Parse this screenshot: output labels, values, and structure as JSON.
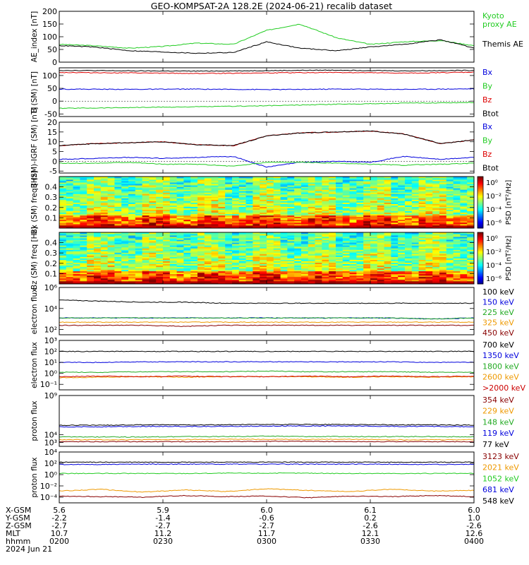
{
  "title": "GEO-KOMPSAT-2A 128.2E (2024-06-21) recalib dataset",
  "chart_data": [
    {
      "id": "ae",
      "type": "line",
      "ylabel": "AE_index [nT]",
      "ylim": [
        0,
        200
      ],
      "yticks": [
        0,
        50,
        100,
        150,
        200
      ],
      "yticklabels": [
        "0",
        "50",
        "100",
        "150",
        "200"
      ],
      "x": [
        0,
        0.08,
        0.17,
        0.25,
        0.33,
        0.42,
        0.5,
        0.58,
        0.67,
        0.75,
        0.83,
        0.92,
        1
      ],
      "legend": [
        {
          "text": "Kyoto",
          "color": "#22cc22"
        },
        {
          "text": "proxy AE",
          "color": "#22cc22"
        },
        {
          "text": "Themis AE",
          "color": "#000000"
        }
      ],
      "series": [
        {
          "name": "Kyoto proxy AE",
          "color": "#22cc22",
          "values": [
            70,
            65,
            55,
            62,
            75,
            70,
            125,
            150,
            95,
            70,
            80,
            85,
            65
          ]
        },
        {
          "name": "Themis AE",
          "color": "#000000",
          "values": [
            65,
            60,
            45,
            40,
            35,
            38,
            80,
            55,
            45,
            60,
            70,
            88,
            55
          ]
        }
      ]
    },
    {
      "id": "bsm",
      "type": "line",
      "ylabel": "B (SM) [nT]",
      "ylim": [
        -60,
        130
      ],
      "yticks": [
        -50,
        0,
        50,
        100
      ],
      "yticklabels": [
        "-50",
        "0",
        "50",
        "100"
      ],
      "x": [
        0,
        0.17,
        0.33,
        0.5,
        0.67,
        0.83,
        1
      ],
      "legend": [
        {
          "text": "Bx",
          "color": "#0000dd"
        },
        {
          "text": "By",
          "color": "#22cc22"
        },
        {
          "text": "Bz",
          "color": "#dd0000"
        },
        {
          "text": "Btot",
          "color": "#000000"
        }
      ],
      "series": [
        {
          "name": "Btot",
          "color": "#000000",
          "values": [
            120,
            118,
            117,
            119,
            121,
            118,
            120
          ]
        },
        {
          "name": "Bz",
          "color": "#dd0000",
          "values": [
            112,
            110,
            108,
            110,
            112,
            109,
            113
          ]
        },
        {
          "name": "Bx",
          "color": "#0000dd",
          "values": [
            47,
            46,
            47,
            45,
            47,
            46,
            48
          ]
        },
        {
          "name": "By",
          "color": "#22cc22",
          "values": [
            -28,
            -25,
            -22,
            -18,
            -12,
            -8,
            -5
          ]
        }
      ]
    },
    {
      "id": "bigrf",
      "type": "line",
      "ylabel": "B (SM)-IGRF (SM) [nT]",
      "ylim": [
        -6,
        20
      ],
      "yticks": [
        -5,
        0,
        5,
        10,
        15,
        20
      ],
      "yticklabels": [
        "-5",
        "0",
        "5",
        "10",
        "15",
        "20"
      ],
      "x": [
        0,
        0.08,
        0.17,
        0.25,
        0.33,
        0.42,
        0.5,
        0.58,
        0.67,
        0.75,
        0.83,
        0.92,
        1
      ],
      "legend": [
        {
          "text": "Bx",
          "color": "#0000dd"
        },
        {
          "text": "By",
          "color": "#22cc22"
        },
        {
          "text": "Bz",
          "color": "#dd0000"
        },
        {
          "text": "Btot",
          "color": "#000000"
        }
      ],
      "series": [
        {
          "name": "Bz",
          "color": "#dd0000",
          "values": [
            8,
            9,
            9.5,
            10,
            8.5,
            8,
            13,
            14.5,
            15,
            15.5,
            14,
            9,
            11
          ]
        },
        {
          "name": "Btot",
          "color": "#000000",
          "values": [
            8,
            9,
            9.5,
            10,
            8.5,
            8,
            13,
            14.5,
            15,
            15.5,
            14,
            9,
            11
          ]
        },
        {
          "name": "Bx",
          "color": "#0000dd",
          "values": [
            1,
            1.5,
            2,
            1.5,
            2,
            2.5,
            -3,
            -0.5,
            0,
            -0.5,
            2.5,
            1,
            2
          ]
        },
        {
          "name": "By",
          "color": "#22cc22",
          "values": [
            -1,
            -1,
            -0.5,
            -1.5,
            -1.5,
            -2.5,
            -0.5,
            -0.5,
            -1,
            -1.5,
            -2,
            -1.5,
            -1
          ]
        }
      ]
    },
    {
      "id": "bxspec",
      "type": "heatmap",
      "ylabel": "Bx (SM) freq [Hz]",
      "ylim": [
        0,
        0.5
      ],
      "yticks": [
        0.1,
        0.2,
        0.3,
        0.4
      ],
      "yticklabels": [
        "0.1",
        "0.2",
        "0.3",
        "0.4"
      ],
      "colorbar": {
        "label": "PSD [nT²/Hz]",
        "ticklabels": [
          "10⁰",
          "10⁻²",
          "10⁻⁴",
          "10⁻⁶"
        ]
      }
    },
    {
      "id": "bzspec",
      "type": "heatmap",
      "ylabel": "Bz (SM) freq [Hz]",
      "ylim": [
        0,
        0.5
      ],
      "yticks": [
        0.1,
        0.2,
        0.3,
        0.4
      ],
      "yticklabels": [
        "0.1",
        "0.2",
        "0.3",
        "0.4"
      ],
      "colorbar": {
        "label": "PSD [nT²/Hz]",
        "ticklabels": [
          "10⁰",
          "10⁻²",
          "10⁻⁴",
          "10⁻⁶"
        ]
      }
    },
    {
      "id": "eflux1",
      "type": "line",
      "ylabel": "electron flux",
      "log": true,
      "ylim": [
        1.5,
        6
      ],
      "yticks": [
        2,
        4,
        6
      ],
      "yticklabels": [
        "10²",
        "10⁴",
        "10⁶"
      ],
      "x": [
        0,
        0.1,
        0.2,
        0.3,
        0.4,
        0.5,
        0.6,
        0.7,
        0.8,
        0.9,
        1
      ],
      "legend": [
        {
          "text": "100 keV",
          "color": "#000000"
        },
        {
          "text": "150 keV",
          "color": "#0000dd"
        },
        {
          "text": "225 keV",
          "color": "#22aa22"
        },
        {
          "text": "325 keV",
          "color": "#ee9900"
        },
        {
          "text": "450 keV",
          "color": "#880000"
        }
      ],
      "series": [
        {
          "name": "100 keV",
          "color": "#000000",
          "values": [
            4.8,
            4.7,
            4.6,
            4.6,
            4.5,
            4.5,
            4.5,
            4.5,
            4.5,
            4.5,
            4.5
          ]
        },
        {
          "name": "150 keV",
          "color": "#0000dd",
          "values": [
            3.1,
            3.1,
            3.1,
            3.1,
            3.1,
            3.1,
            3.1,
            3.1,
            3.1,
            3.0,
            3.1
          ]
        },
        {
          "name": "225 keV",
          "color": "#22aa22",
          "values": [
            3.1,
            3.1,
            3.1,
            3.1,
            3.1,
            3.1,
            3.1,
            3.1,
            3.1,
            3.0,
            3.1
          ]
        },
        {
          "name": "325 keV",
          "color": "#ee9900",
          "values": [
            2.7,
            2.7,
            2.7,
            2.7,
            2.7,
            2.7,
            2.7,
            2.7,
            2.7,
            2.7,
            2.7
          ]
        },
        {
          "name": "450 keV",
          "color": "#880000",
          "values": [
            2.4,
            2.4,
            2.4,
            2.3,
            2.4,
            2.4,
            2.4,
            2.4,
            2.4,
            2.4,
            2.4
          ]
        }
      ]
    },
    {
      "id": "eflux2",
      "type": "line",
      "ylabel": "electron flux",
      "log": true,
      "ylim": [
        -1.5,
        3
      ],
      "yticks": [
        -1,
        0,
        1,
        2,
        3
      ],
      "yticklabels": [
        "10⁻¹",
        "10⁰",
        "10¹",
        "10²",
        "10³"
      ],
      "x": [
        0,
        0.1,
        0.2,
        0.3,
        0.4,
        0.5,
        0.6,
        0.7,
        0.8,
        0.9,
        1
      ],
      "legend": [
        {
          "text": "700 keV",
          "color": "#000000"
        },
        {
          "text": "1350 keV",
          "color": "#0000dd"
        },
        {
          "text": "1800 keV",
          "color": "#22aa22"
        },
        {
          "text": "2600 keV",
          "color": "#ee9900"
        },
        {
          "text": ">2000 keV",
          "color": "#cc0000"
        }
      ],
      "series": [
        {
          "name": "700 keV",
          "color": "#000000",
          "values": [
            2.0,
            2.0,
            2.0,
            2.0,
            2.0,
            2.0,
            2.0,
            2.0,
            2.0,
            2.0,
            2.0
          ]
        },
        {
          "name": "1350 keV",
          "color": "#0000dd",
          "values": [
            1.0,
            1.0,
            1.05,
            1.05,
            1.05,
            1.05,
            1.05,
            1.05,
            1.05,
            1.0,
            1.0
          ]
        },
        {
          "name": "1800 keV",
          "color": "#22aa22",
          "values": [
            0.1,
            0.1,
            0.15,
            0.15,
            0.15,
            0.2,
            0.15,
            0.15,
            0.15,
            0.1,
            0.1
          ]
        },
        {
          "name": "2600 keV",
          "color": "#ee9900",
          "values": [
            -0.4,
            -0.35,
            -0.3,
            -0.35,
            -0.3,
            -0.3,
            -0.3,
            -0.35,
            -0.3,
            -0.35,
            -0.3
          ]
        },
        {
          "name": ">2000 keV",
          "color": "#cc0000",
          "values": [
            -0.3,
            -0.25,
            -0.3,
            -0.25,
            -0.3,
            -0.3,
            -0.25,
            -0.3,
            -0.25,
            -0.3,
            -0.25
          ]
        }
      ]
    },
    {
      "id": "pflux1",
      "type": "line",
      "ylabel": "proton flux",
      "log": true,
      "ylim": [
        2.5,
        9
      ],
      "yticks": [
        3,
        4,
        9
      ],
      "yticklabels": [
        "10³",
        "10⁴",
        "10⁹"
      ],
      "x": [
        0,
        0.1,
        0.2,
        0.3,
        0.4,
        0.5,
        0.6,
        0.7,
        0.8,
        0.9,
        1
      ],
      "legend": [
        {
          "text": "354 keV",
          "color": "#880000"
        },
        {
          "text": "229 keV",
          "color": "#ee9900"
        },
        {
          "text": "148 keV",
          "color": "#22aa22"
        },
        {
          "text": "119 keV",
          "color": "#0000dd"
        },
        {
          "text": "77 keV",
          "color": "#000000"
        }
      ],
      "series": [
        {
          "name": "77 keV",
          "color": "#000000",
          "values": [
            5.2,
            5.2,
            5.25,
            5.25,
            5.25,
            5.3,
            5.3,
            5.3,
            5.25,
            5.25,
            5.2
          ]
        },
        {
          "name": "119 keV",
          "color": "#0000dd",
          "values": [
            5.0,
            5.0,
            5.05,
            5.05,
            5.05,
            5.1,
            5.1,
            5.1,
            5.05,
            5.05,
            5.0
          ]
        },
        {
          "name": "148 keV",
          "color": "#22aa22",
          "values": [
            3.7,
            3.7,
            3.7,
            3.75,
            3.75,
            3.8,
            3.75,
            3.75,
            3.75,
            3.75,
            3.7
          ]
        },
        {
          "name": "229 keV",
          "color": "#ee9900",
          "values": [
            3.35,
            3.35,
            3.35,
            3.35,
            3.4,
            3.4,
            3.4,
            3.4,
            3.35,
            3.35,
            3.35
          ]
        },
        {
          "name": "354 keV",
          "color": "#880000",
          "values": [
            3.1,
            3.1,
            3.1,
            3.1,
            3.1,
            3.15,
            3.15,
            3.1,
            3.1,
            3.1,
            3.1
          ]
        }
      ]
    },
    {
      "id": "pflux2",
      "type": "line",
      "ylabel": "proton flux",
      "log": true,
      "ylim": [
        -5,
        4
      ],
      "yticks": [
        -4,
        -2,
        0,
        2,
        4
      ],
      "yticklabels": [
        "10⁻⁴",
        "10⁻²",
        "10⁰",
        "10²",
        "10⁴"
      ],
      "x": [
        0,
        0.1,
        0.2,
        0.3,
        0.4,
        0.5,
        0.6,
        0.7,
        0.8,
        0.9,
        1
      ],
      "legend": [
        {
          "text": "3123 keV",
          "color": "#880000"
        },
        {
          "text": "2021 keV",
          "color": "#ee9900"
        },
        {
          "text": "1052 keV",
          "color": "#22cc22"
        },
        {
          "text": "681 keV",
          "color": "#0000dd"
        },
        {
          "text": "548 keV",
          "color": "#000000"
        }
      ],
      "series": [
        {
          "name": "548 keV",
          "color": "#000000",
          "values": [
            2.2,
            2.2,
            2.2,
            2.2,
            2.2,
            2.2,
            2.2,
            2.2,
            2.2,
            2.2,
            2.2
          ]
        },
        {
          "name": "681 keV",
          "color": "#0000dd",
          "values": [
            1.8,
            1.8,
            1.85,
            1.85,
            1.85,
            1.85,
            1.85,
            1.85,
            1.85,
            1.8,
            1.8
          ]
        },
        {
          "name": "1052 keV",
          "color": "#22cc22",
          "values": [
            0.2,
            0.2,
            0.2,
            0.2,
            0.25,
            0.25,
            0.25,
            0.2,
            0.2,
            0.2,
            0.2
          ]
        },
        {
          "name": "2021 keV",
          "color": "#ee9900",
          "values": [
            -2.9,
            -2.6,
            -3.1,
            -2.7,
            -3.0,
            -2.5,
            -2.8,
            -3.0,
            -2.6,
            -2.9,
            -2.8
          ]
        },
        {
          "name": "3123 keV",
          "color": "#880000",
          "values": [
            -3.8,
            -3.9,
            -4.0,
            -3.7,
            -3.9,
            -3.8,
            -4.1,
            -3.8,
            -3.9,
            -3.7,
            -3.9
          ]
        }
      ]
    }
  ],
  "x_axis": {
    "tick_positions": [
      0,
      0.25,
      0.5,
      0.75,
      1
    ],
    "rows": [
      {
        "label": "X-GSM",
        "values": [
          "5.6",
          "5.9",
          "6.0",
          "6.1",
          "6.0"
        ]
      },
      {
        "label": "Y-GSM",
        "values": [
          "-2.2",
          "-1.4",
          "-0.6",
          "0.2",
          "1.0"
        ]
      },
      {
        "label": "Z-GSM",
        "values": [
          "-2.7",
          "-2.7",
          "-2.7",
          "-2.6",
          "-2.6"
        ]
      },
      {
        "label": "MLT",
        "values": [
          "10.7",
          "11.2",
          "11.7",
          "12.1",
          "12.6"
        ]
      },
      {
        "label": "hhmm",
        "values": [
          "0200",
          "0230",
          "0300",
          "0330",
          "0400"
        ]
      }
    ],
    "date": "2024 Jun 21"
  }
}
